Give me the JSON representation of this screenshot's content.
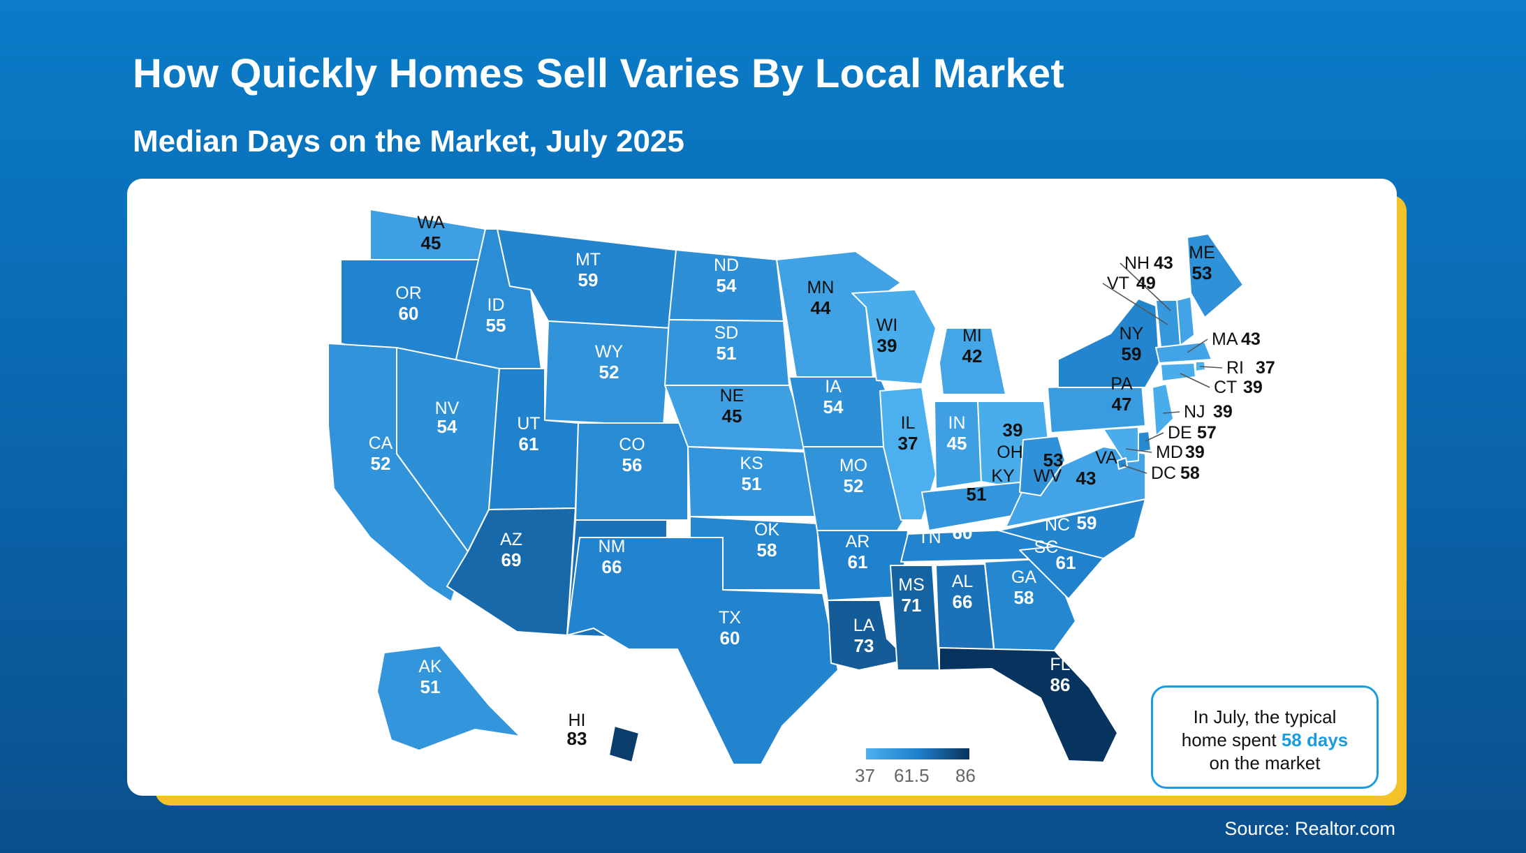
{
  "title": "How Quickly Homes Sell Varies By Local Market",
  "subtitle": "Median Days on the Market, July 2025",
  "source": "Source: Realtor.com",
  "callout": {
    "part1": "In July, the typical",
    "part2_prefix": "home spent ",
    "highlight": "58 days",
    "part3": "on the market"
  },
  "legend": {
    "min": "37",
    "mid": "61.5",
    "max": "86"
  },
  "colors": {
    "background_top": "#0a7cc8",
    "background_bottom": "#0a4f8c",
    "card_shadow": "#f3c22b",
    "highlight": "#1b9be0",
    "scale_low": "#4db0ee",
    "scale_high": "#07345e"
  },
  "states": [
    {
      "abbr": "WA",
      "value": 45
    },
    {
      "abbr": "OR",
      "value": 60
    },
    {
      "abbr": "CA",
      "value": 52
    },
    {
      "abbr": "ID",
      "value": 55
    },
    {
      "abbr": "NV",
      "value": 54
    },
    {
      "abbr": "MT",
      "value": 59
    },
    {
      "abbr": "WY",
      "value": 52
    },
    {
      "abbr": "UT",
      "value": 61
    },
    {
      "abbr": "AZ",
      "value": 69
    },
    {
      "abbr": "CO",
      "value": 56
    },
    {
      "abbr": "NM",
      "value": 66
    },
    {
      "abbr": "ND",
      "value": 54
    },
    {
      "abbr": "SD",
      "value": 51
    },
    {
      "abbr": "NE",
      "value": 45
    },
    {
      "abbr": "KS",
      "value": 51
    },
    {
      "abbr": "OK",
      "value": 58
    },
    {
      "abbr": "TX",
      "value": 60
    },
    {
      "abbr": "MN",
      "value": 44
    },
    {
      "abbr": "IA",
      "value": 54
    },
    {
      "abbr": "MO",
      "value": 52
    },
    {
      "abbr": "AR",
      "value": 61
    },
    {
      "abbr": "LA",
      "value": 73
    },
    {
      "abbr": "WI",
      "value": 39
    },
    {
      "abbr": "IL",
      "value": 37
    },
    {
      "abbr": "MI",
      "value": 42
    },
    {
      "abbr": "IN",
      "value": 45
    },
    {
      "abbr": "OH",
      "value": 39
    },
    {
      "abbr": "KY",
      "value": 51
    },
    {
      "abbr": "TN",
      "value": 60
    },
    {
      "abbr": "MS",
      "value": 71
    },
    {
      "abbr": "AL",
      "value": 66
    },
    {
      "abbr": "GA",
      "value": 58
    },
    {
      "abbr": "FL",
      "value": 86
    },
    {
      "abbr": "SC",
      "value": 61
    },
    {
      "abbr": "NC",
      "value": 59
    },
    {
      "abbr": "VA",
      "value": 43
    },
    {
      "abbr": "WV",
      "value": 53
    },
    {
      "abbr": "PA",
      "value": 47
    },
    {
      "abbr": "NY",
      "value": 59
    },
    {
      "abbr": "ME",
      "value": 53
    },
    {
      "abbr": "NH",
      "value": 43
    },
    {
      "abbr": "VT",
      "value": 49
    },
    {
      "abbr": "MA",
      "value": 43
    },
    {
      "abbr": "RI",
      "value": 37
    },
    {
      "abbr": "CT",
      "value": 39
    },
    {
      "abbr": "NJ",
      "value": 39
    },
    {
      "abbr": "DE",
      "value": 57
    },
    {
      "abbr": "MD",
      "value": 39
    },
    {
      "abbr": "DC",
      "value": 58
    },
    {
      "abbr": "AK",
      "value": 51
    },
    {
      "abbr": "HI",
      "value": 83
    }
  ]
}
